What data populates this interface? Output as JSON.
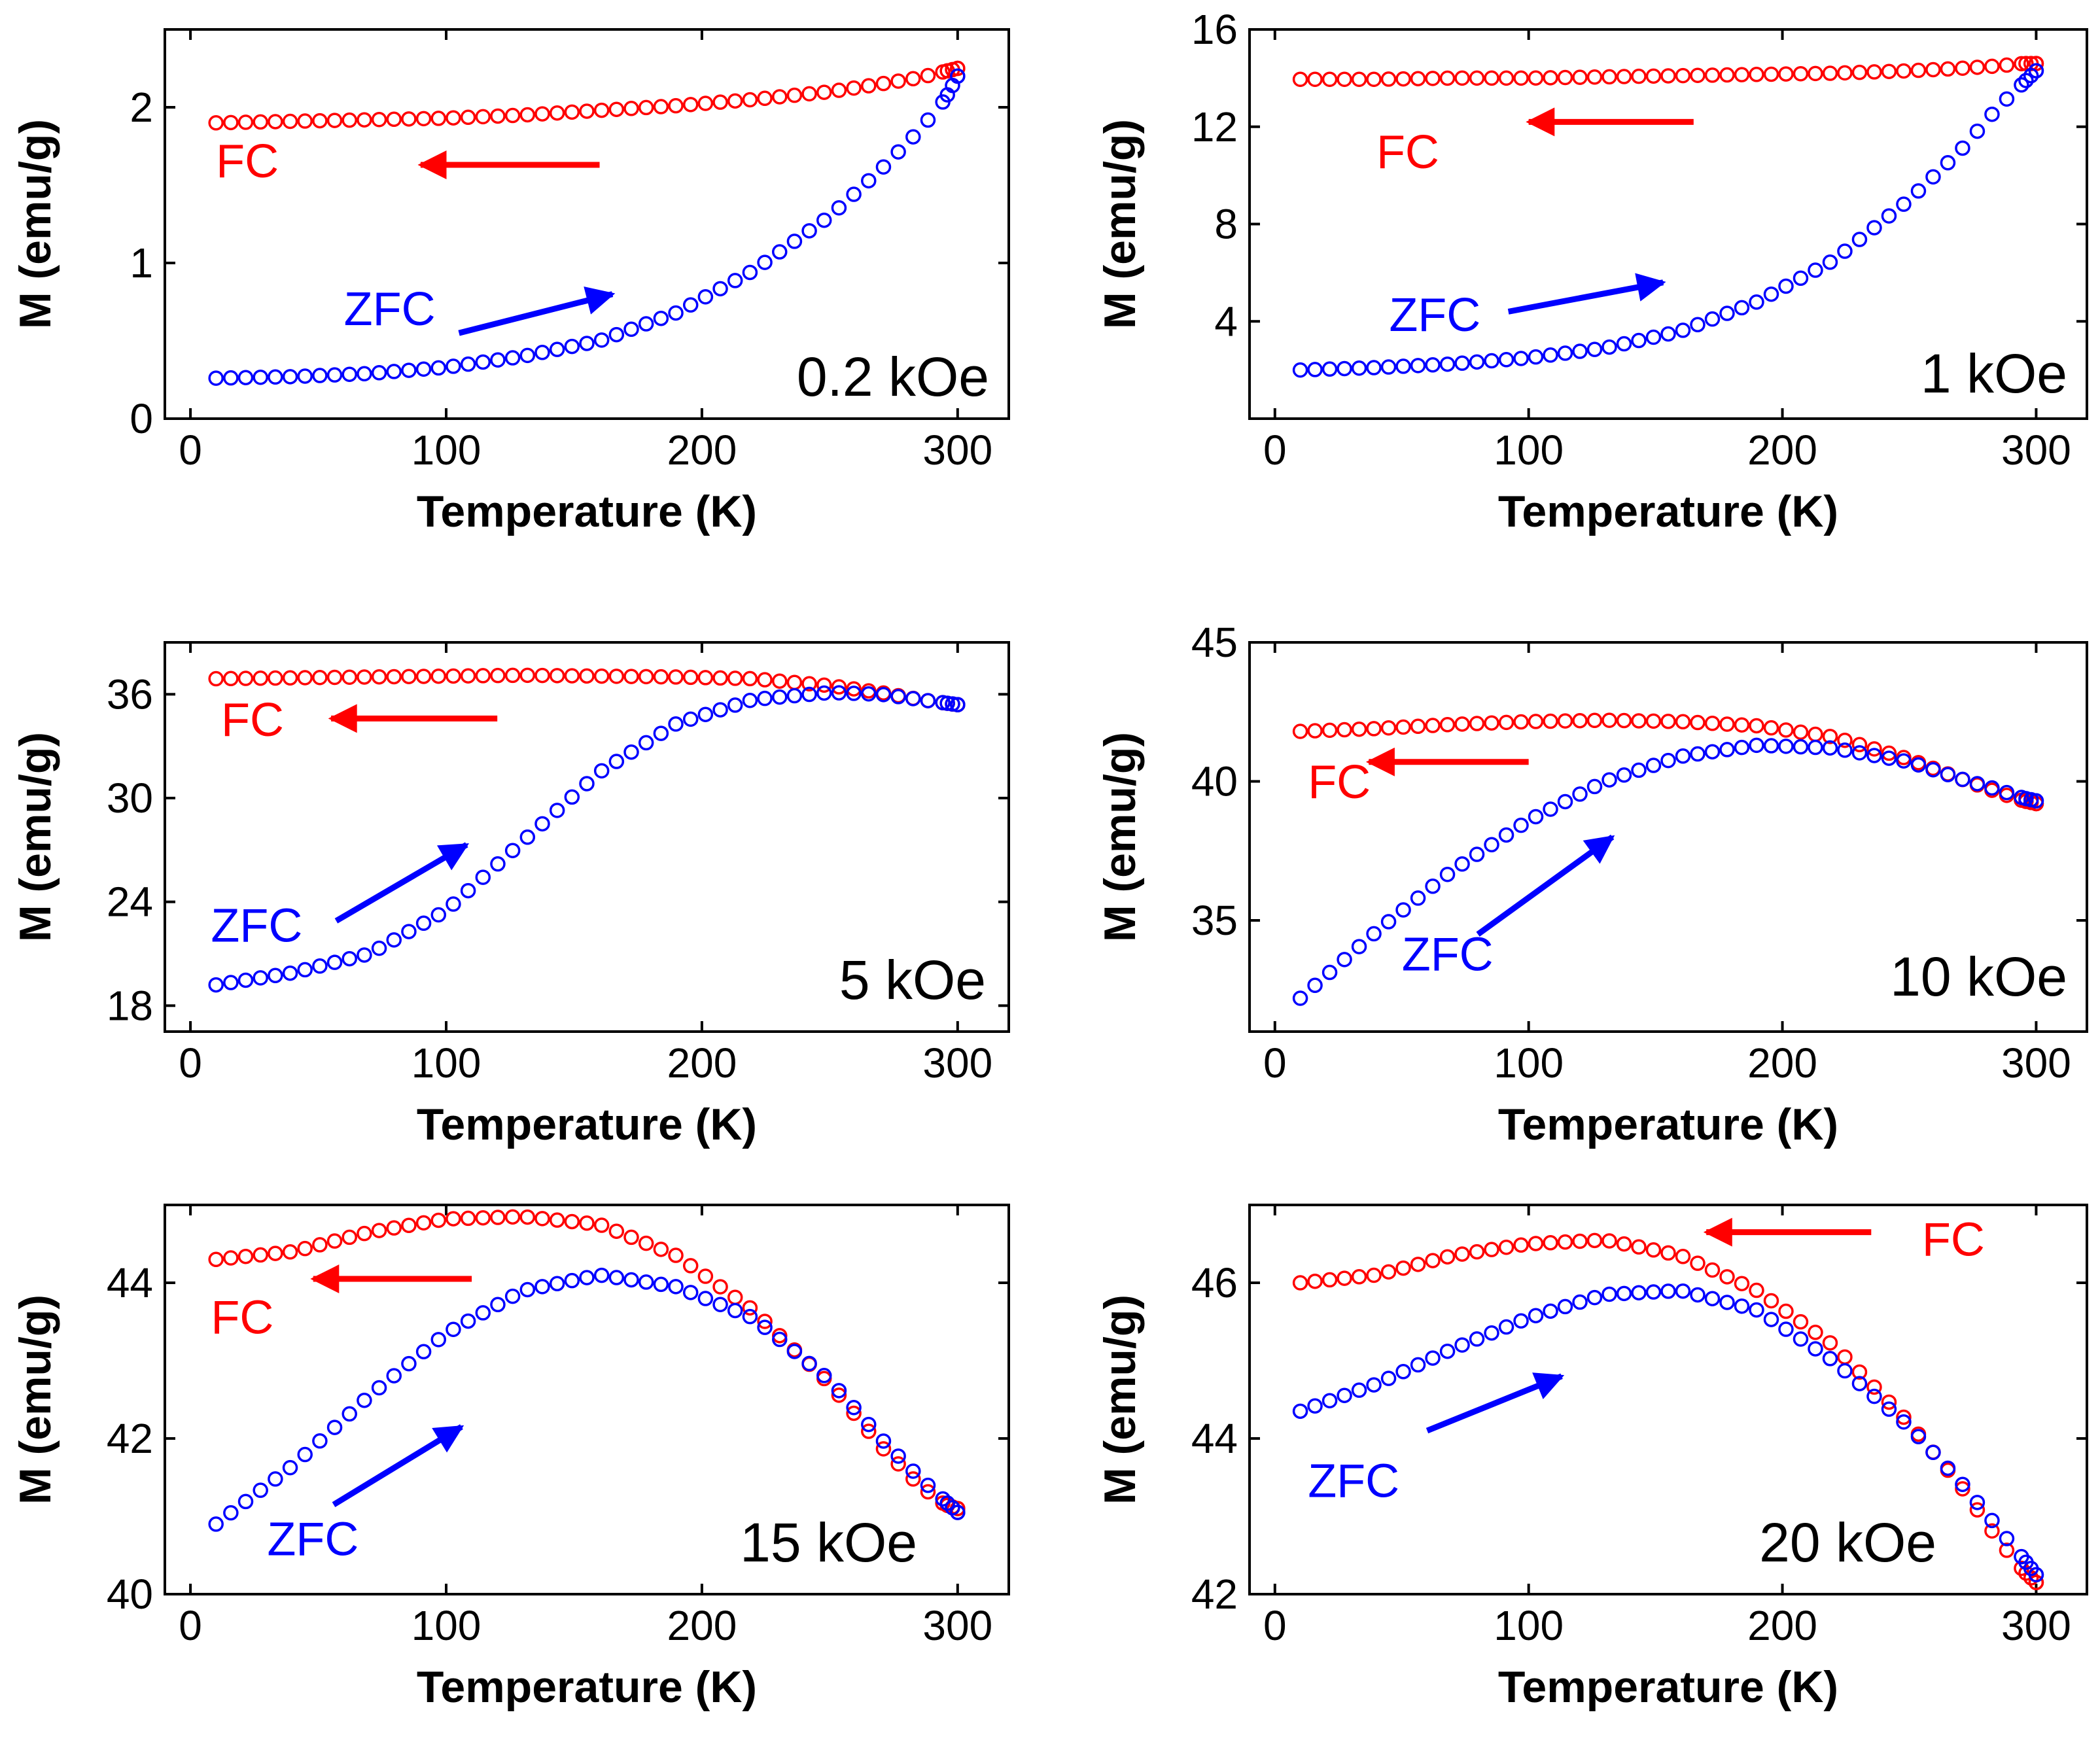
{
  "colors": {
    "fc": "#ff0000",
    "zfc": "#0000ff",
    "axis": "#000000"
  },
  "chart_data": [
    {
      "type": "scatter",
      "field": "0.2 kOe",
      "xlabel": "Temperature (K)",
      "ylabel": "M (emu/g)",
      "xlim": [
        -10,
        320
      ],
      "ylim": [
        0,
        2.5
      ],
      "xticks": [
        0,
        100,
        200,
        300
      ],
      "yticks": [
        0,
        1,
        2
      ],
      "series": [
        {
          "name": "FC",
          "color": "#ff0000",
          "x": [
            10,
            40,
            70,
            100,
            130,
            160,
            190,
            220,
            250,
            270,
            285,
            295,
            300
          ],
          "y": [
            1.9,
            1.91,
            1.92,
            1.93,
            1.95,
            1.98,
            2.01,
            2.05,
            2.1,
            2.15,
            2.19,
            2.23,
            2.25
          ]
        },
        {
          "name": "ZFC",
          "color": "#0000ff",
          "x": [
            10,
            40,
            70,
            100,
            130,
            160,
            190,
            220,
            250,
            270,
            285,
            295,
            300
          ],
          "y": [
            0.26,
            0.27,
            0.29,
            0.33,
            0.4,
            0.5,
            0.68,
            0.95,
            1.3,
            1.6,
            1.85,
            2.05,
            2.2
          ]
        }
      ],
      "annotations": [
        {
          "text": "FC",
          "x": 10,
          "y": 1.55,
          "color": "#ff0000"
        },
        {
          "text": "ZFC",
          "x": 60,
          "y": 0.6,
          "color": "#0000ff"
        }
      ],
      "arrows": [
        {
          "from": [
            160,
            1.63
          ],
          "to": [
            90,
            1.63
          ],
          "color": "#ff0000"
        },
        {
          "from": [
            105,
            0.55
          ],
          "to": [
            165,
            0.8
          ],
          "color": "#0000ff"
        }
      ]
    },
    {
      "type": "scatter",
      "field": "1 kOe",
      "xlabel": "Temperature (K)",
      "ylabel": "M (emu/g)",
      "xlim": [
        -10,
        320
      ],
      "ylim": [
        0,
        16
      ],
      "xticks": [
        0,
        100,
        200,
        300
      ],
      "yticks": [
        4,
        8,
        12,
        16
      ],
      "series": [
        {
          "name": "FC",
          "color": "#ff0000",
          "x": [
            10,
            40,
            70,
            100,
            130,
            160,
            190,
            220,
            250,
            270,
            285,
            295,
            300
          ],
          "y": [
            13.95,
            13.95,
            14.0,
            14.0,
            14.05,
            14.1,
            14.15,
            14.2,
            14.3,
            14.4,
            14.5,
            14.6,
            14.6
          ]
        },
        {
          "name": "ZFC",
          "color": "#0000ff",
          "x": [
            10,
            40,
            70,
            100,
            130,
            160,
            190,
            220,
            250,
            270,
            285,
            295,
            300
          ],
          "y": [
            2.0,
            2.1,
            2.25,
            2.5,
            2.9,
            3.6,
            4.8,
            6.5,
            9.0,
            11.0,
            12.8,
            13.8,
            14.3
          ]
        }
      ],
      "annotations": [
        {
          "text": "FC",
          "x": 40,
          "y": 10.3,
          "color": "#ff0000"
        },
        {
          "text": "ZFC",
          "x": 45,
          "y": 3.6,
          "color": "#0000ff"
        }
      ],
      "arrows": [
        {
          "from": [
            165,
            12.2
          ],
          "to": [
            100,
            12.2
          ],
          "color": "#ff0000"
        },
        {
          "from": [
            92,
            4.4
          ],
          "to": [
            153,
            5.6
          ],
          "color": "#0000ff"
        }
      ]
    },
    {
      "type": "scatter",
      "field": "5 kOe",
      "xlabel": "Temperature (K)",
      "ylabel": "M (emu/g)",
      "xlim": [
        -10,
        320
      ],
      "ylim": [
        16.5,
        39
      ],
      "xticks": [
        0,
        100,
        200,
        300
      ],
      "yticks": [
        18,
        24,
        30,
        36
      ],
      "series": [
        {
          "name": "FC",
          "color": "#ff0000",
          "x": [
            10,
            40,
            70,
            100,
            130,
            160,
            190,
            220,
            250,
            270,
            285,
            295,
            300
          ],
          "y": [
            36.9,
            36.95,
            37.0,
            37.05,
            37.1,
            37.05,
            37.0,
            36.9,
            36.5,
            36.1,
            35.7,
            35.5,
            35.4
          ]
        },
        {
          "name": "ZFC",
          "color": "#0000ff",
          "x": [
            10,
            40,
            70,
            100,
            130,
            160,
            190,
            220,
            250,
            270,
            285,
            295,
            300
          ],
          "y": [
            19.2,
            19.9,
            21.0,
            23.5,
            27.5,
            31.5,
            34.3,
            35.7,
            36.1,
            36.0,
            35.7,
            35.5,
            35.4
          ]
        }
      ],
      "annotations": [
        {
          "text": "FC",
          "x": 12,
          "y": 33.6,
          "color": "#ff0000"
        },
        {
          "text": "ZFC",
          "x": 8,
          "y": 21.7,
          "color": "#0000ff"
        }
      ],
      "arrows": [
        {
          "from": [
            120,
            34.6
          ],
          "to": [
            55,
            34.6
          ],
          "color": "#ff0000"
        },
        {
          "from": [
            57,
            22.9
          ],
          "to": [
            108,
            27.3
          ],
          "color": "#0000ff"
        }
      ]
    },
    {
      "type": "scatter",
      "field": "10 kOe",
      "xlabel": "Temperature (K)",
      "ylabel": "M (emu/g)",
      "xlim": [
        -10,
        320
      ],
      "ylim": [
        31,
        45
      ],
      "xticks": [
        0,
        100,
        200,
        300
      ],
      "yticks": [
        35,
        40,
        45
      ],
      "series": [
        {
          "name": "FC",
          "color": "#ff0000",
          "x": [
            10,
            40,
            70,
            100,
            130,
            160,
            190,
            220,
            250,
            270,
            285,
            295,
            300
          ],
          "y": [
            41.8,
            41.9,
            42.05,
            42.15,
            42.2,
            42.15,
            42.0,
            41.6,
            40.8,
            40.1,
            39.6,
            39.3,
            39.2
          ]
        },
        {
          "name": "ZFC",
          "color": "#0000ff",
          "x": [
            10,
            40,
            70,
            100,
            130,
            160,
            190,
            220,
            250,
            270,
            285,
            295,
            300
          ],
          "y": [
            32.2,
            34.6,
            36.8,
            38.6,
            40.0,
            40.9,
            41.3,
            41.2,
            40.7,
            40.1,
            39.7,
            39.4,
            39.3
          ]
        }
      ],
      "annotations": [
        {
          "text": "FC",
          "x": 13,
          "y": 39.4,
          "color": "#ff0000"
        },
        {
          "text": "ZFC",
          "x": 50,
          "y": 33.2,
          "color": "#0000ff"
        }
      ],
      "arrows": [
        {
          "from": [
            100,
            40.7
          ],
          "to": [
            37,
            40.7
          ],
          "color": "#ff0000"
        },
        {
          "from": [
            80,
            34.5
          ],
          "to": [
            133,
            38.0
          ],
          "color": "#0000ff"
        }
      ]
    },
    {
      "type": "scatter",
      "field": "15 kOe",
      "xlabel": "Temperature (K)",
      "ylabel": "M (emu/g)",
      "xlim": [
        -10,
        320
      ],
      "ylim": [
        40,
        45
      ],
      "xticks": [
        0,
        100,
        200,
        300
      ],
      "yticks": [
        40,
        42,
        44
      ],
      "series": [
        {
          "name": "FC",
          "color": "#ff0000",
          "x": [
            10,
            40,
            70,
            100,
            130,
            160,
            190,
            220,
            250,
            270,
            285,
            295,
            300
          ],
          "y": [
            44.3,
            44.4,
            44.65,
            44.82,
            44.85,
            44.75,
            44.35,
            43.65,
            42.7,
            41.9,
            41.4,
            41.15,
            41.1
          ]
        },
        {
          "name": "ZFC",
          "color": "#0000ff",
          "x": [
            10,
            40,
            70,
            100,
            130,
            160,
            190,
            220,
            250,
            270,
            285,
            295,
            300
          ],
          "y": [
            40.9,
            41.65,
            42.55,
            43.35,
            43.9,
            44.1,
            43.95,
            43.55,
            42.75,
            42.0,
            41.5,
            41.2,
            41.05
          ]
        }
      ],
      "annotations": [
        {
          "text": "FC",
          "x": 8,
          "y": 43.35,
          "color": "#ff0000"
        },
        {
          "text": "ZFC",
          "x": 30,
          "y": 40.5,
          "color": "#0000ff"
        }
      ],
      "arrows": [
        {
          "from": [
            110,
            44.05
          ],
          "to": [
            48,
            44.05
          ],
          "color": "#ff0000"
        },
        {
          "from": [
            56,
            41.15
          ],
          "to": [
            106,
            42.15
          ],
          "color": "#0000ff"
        }
      ]
    },
    {
      "type": "scatter",
      "field": "20 kOe",
      "xlabel": "Temperature (K)",
      "ylabel": "M (emu/g)",
      "xlim": [
        -10,
        320
      ],
      "ylim": [
        42,
        47
      ],
      "xticks": [
        0,
        100,
        200,
        300
      ],
      "yticks": [
        42,
        44,
        46
      ],
      "series": [
        {
          "name": "FC",
          "color": "#ff0000",
          "x": [
            10,
            40,
            70,
            100,
            130,
            160,
            190,
            220,
            250,
            270,
            285,
            295,
            300
          ],
          "y": [
            46.0,
            46.1,
            46.35,
            46.5,
            46.55,
            46.35,
            45.9,
            45.2,
            44.2,
            43.4,
            42.7,
            42.3,
            42.15
          ]
        },
        {
          "name": "ZFC",
          "color": "#0000ff",
          "x": [
            10,
            40,
            70,
            100,
            130,
            160,
            190,
            220,
            250,
            270,
            285,
            295,
            300
          ],
          "y": [
            44.35,
            44.7,
            45.15,
            45.55,
            45.85,
            45.9,
            45.65,
            45.0,
            44.15,
            43.45,
            42.85,
            42.45,
            42.25
          ]
        }
      ],
      "annotations": [
        {
          "text": "FC",
          "x": 255,
          "y": 46.35,
          "color": "#ff0000"
        },
        {
          "text": "ZFC",
          "x": 13,
          "y": 43.25,
          "color": "#0000ff"
        }
      ],
      "arrows": [
        {
          "from": [
            235,
            46.65
          ],
          "to": [
            170,
            46.65
          ],
          "color": "#ff0000"
        },
        {
          "from": [
            60,
            44.1
          ],
          "to": [
            113,
            44.8
          ],
          "color": "#0000ff"
        }
      ]
    }
  ]
}
